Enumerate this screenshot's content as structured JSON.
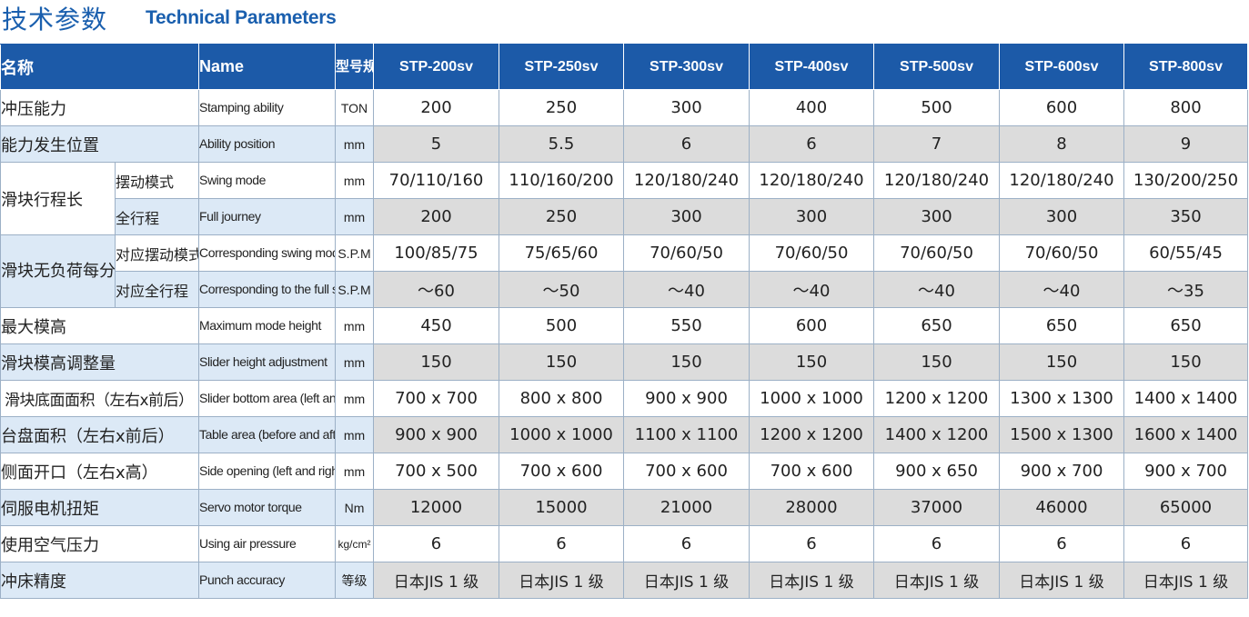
{
  "header": {
    "title_cn": "技术参数",
    "title_en": "Technical Parameters"
  },
  "table": {
    "head": {
      "name_cn": "名称",
      "name_en": "Name",
      "unit": "型号规格",
      "models": [
        "STP-200sv",
        "STP-250sv",
        "STP-300sv",
        "STP-400sv",
        "STP-500sv",
        "STP-600sv",
        "STP-800sv"
      ]
    },
    "groups": {
      "slider_stroke": "滑块行程长",
      "spm": "滑块无负荷每分钟行程次数"
    },
    "rows": [
      {
        "cn": "冲压能力",
        "en": "Stamping ability",
        "unit": "TON",
        "values": [
          "200",
          "250",
          "300",
          "400",
          "500",
          "600",
          "800"
        ]
      },
      {
        "cn": "能力发生位置",
        "en": "Ability position",
        "unit": "mm",
        "values": [
          "5",
          "5.5",
          "6",
          "6",
          "7",
          "8",
          "9"
        ]
      },
      {
        "cn": "摆动模式",
        "en": "Swing mode",
        "unit": "mm",
        "values": [
          "70/110/160",
          "110/160/200",
          "120/180/240",
          "120/180/240",
          "120/180/240",
          "120/180/240",
          "130/200/250"
        ]
      },
      {
        "cn": "全行程",
        "en": "Full journey",
        "unit": "mm",
        "values": [
          "200",
          "250",
          "300",
          "300",
          "300",
          "300",
          "350"
        ]
      },
      {
        "cn": "对应摆动模式",
        "en": "Corresponding swing mode",
        "unit": "S.P.M",
        "values": [
          "100/85/75",
          "75/65/60",
          "70/60/50",
          "70/60/50",
          "70/60/50",
          "70/60/50",
          "60/55/45"
        ]
      },
      {
        "cn": "对应全行程",
        "en": "Corresponding to the full stroke",
        "unit": "S.P.M",
        "values": [
          "～60",
          "～50",
          "～40",
          "～40",
          "～40",
          "～40",
          "～35"
        ]
      },
      {
        "cn": "最大模高",
        "en": "Maximum mode height",
        "unit": "mm",
        "values": [
          "450",
          "500",
          "550",
          "600",
          "650",
          "650",
          "650"
        ]
      },
      {
        "cn": "滑块模高调整量",
        "en": "Slider height adjustment",
        "unit": "mm",
        "values": [
          "150",
          "150",
          "150",
          "150",
          "150",
          "150",
          "150"
        ]
      },
      {
        "cn": "滑块底面面积（左右x前后）",
        "en": "Slider bottom area (left and right x front and rear)",
        "unit": "mm",
        "values": [
          "700 x 700",
          "800 x 800",
          "900 x 900",
          "1000 x 1000",
          "1200 x 1200",
          "1300 x 1300",
          "1400 x 1400"
        ]
      },
      {
        "cn": "台盘面积（左右x前后）",
        "en": "Table area (before and after x)",
        "unit": "mm",
        "values": [
          "900 x 900",
          "1000 x 1000",
          "1100 x 1100",
          "1200 x 1200",
          "1400 x 1200",
          "1500 x 1300",
          "1600 x 1400"
        ]
      },
      {
        "cn": "侧面开口（左右x高）",
        "en": "Side opening (left and right x high)",
        "unit": "mm",
        "values": [
          "700 x 500",
          "700 x 600",
          "700 x 600",
          "700 x 600",
          "900 x 650",
          "900 x 700",
          "900 x 700"
        ]
      },
      {
        "cn": "伺服电机扭矩",
        "en": "Servo motor torque",
        "unit": "Nm",
        "values": [
          "12000",
          "15000",
          "21000",
          "28000",
          "37000",
          "46000",
          "65000"
        ]
      },
      {
        "cn": "使用空气压力",
        "en": "Using air pressure",
        "unit": "kg/cm²",
        "values": [
          "6",
          "6",
          "6",
          "6",
          "6",
          "6",
          "6"
        ]
      },
      {
        "cn": "冲床精度",
        "en": "Punch accuracy",
        "unit": "等级",
        "values": [
          "日本JIS 1 级",
          "日本JIS 1 级",
          "日本JIS 1 级",
          "日本JIS 1 级",
          "日本JIS 1 级",
          "日本JIS 1 级",
          "日本JIS 1 级"
        ]
      }
    ]
  }
}
